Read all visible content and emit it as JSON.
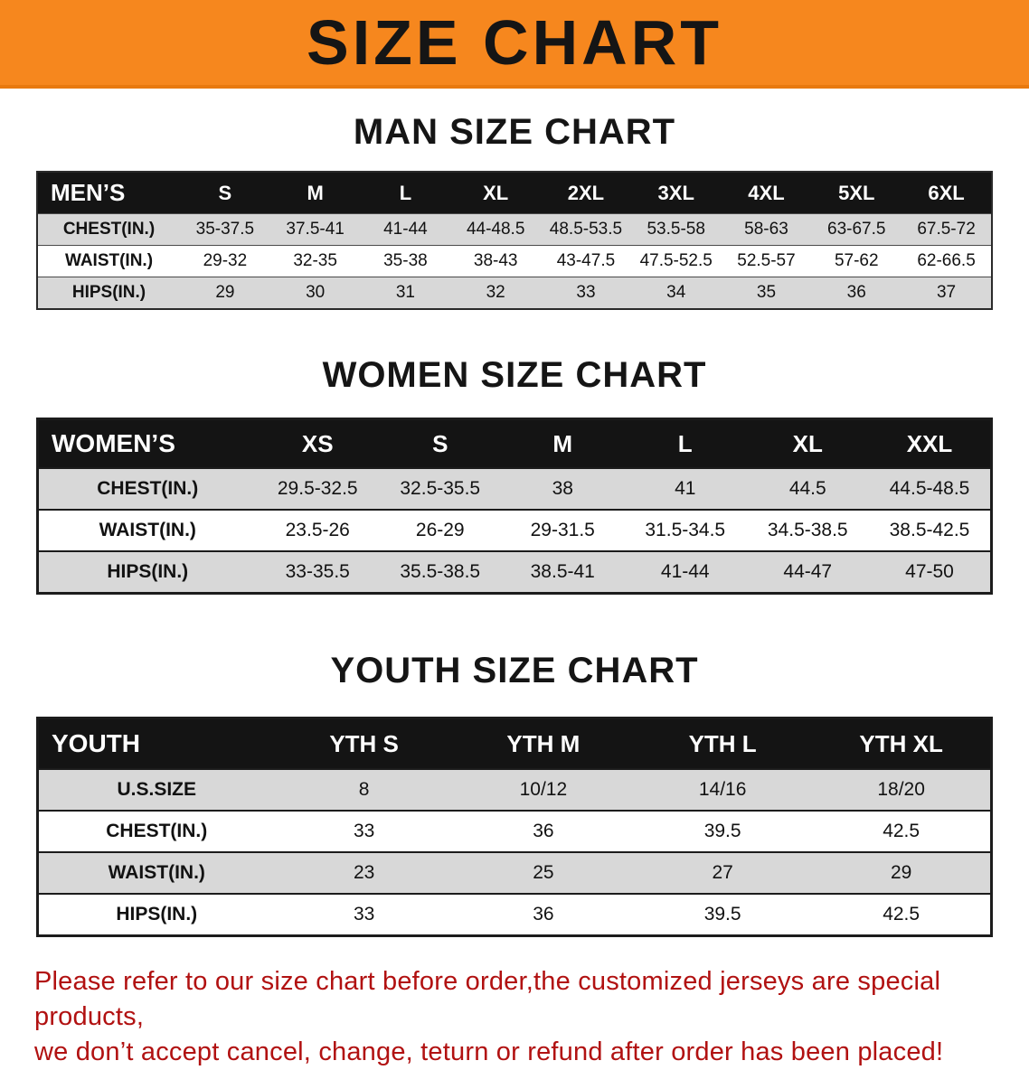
{
  "banner": {
    "title": "SIZE CHART",
    "bg_color": "#f6871e"
  },
  "sections": [
    {
      "heading": "MAN SIZE CHART",
      "table": {
        "header": [
          "MEN’S",
          "S",
          "M",
          "L",
          "XL",
          "2XL",
          "3XL",
          "4XL",
          "5XL",
          "6XL"
        ],
        "rows": [
          {
            "label": "CHEST(IN.)",
            "values": [
              "35-37.5",
              "37.5-41",
              "41-44",
              "44-48.5",
              "48.5-53.5",
              "53.5-58",
              "58-63",
              "63-67.5",
              "67.5-72"
            ]
          },
          {
            "label": "WAIST(IN.)",
            "values": [
              "29-32",
              "32-35",
              "35-38",
              "38-43",
              "43-47.5",
              "47.5-52.5",
              "52.5-57",
              "57-62",
              "62-66.5"
            ]
          },
          {
            "label": "HIPS(IN.)",
            "values": [
              "29",
              "30",
              "31",
              "32",
              "33",
              "34",
              "35",
              "36",
              "37"
            ]
          }
        ]
      }
    },
    {
      "heading": "WOMEN SIZE CHART",
      "table": {
        "header": [
          "WOMEN’S",
          "XS",
          "S",
          "M",
          "L",
          "XL",
          "XXL"
        ],
        "rows": [
          {
            "label": "CHEST(IN.)",
            "values": [
              "29.5-32.5",
              "32.5-35.5",
              "38",
              "41",
              "44.5",
              "44.5-48.5"
            ]
          },
          {
            "label": "WAIST(IN.)",
            "values": [
              "23.5-26",
              "26-29",
              "29-31.5",
              "31.5-34.5",
              "34.5-38.5",
              "38.5-42.5"
            ]
          },
          {
            "label": "HIPS(IN.)",
            "values": [
              "33-35.5",
              "35.5-38.5",
              "38.5-41",
              "41-44",
              "44-47",
              "47-50"
            ]
          }
        ]
      }
    },
    {
      "heading": "YOUTH SIZE CHART",
      "table": {
        "header": [
          "YOUTH",
          "YTH S",
          "YTH M",
          "YTH L",
          "YTH XL"
        ],
        "rows": [
          {
            "label": "U.S.SIZE",
            "values": [
              "8",
              "10/12",
              "14/16",
              "18/20"
            ]
          },
          {
            "label": "CHEST(IN.)",
            "values": [
              "33",
              "36",
              "39.5",
              "42.5"
            ]
          },
          {
            "label": "WAIST(IN.)",
            "values": [
              "23",
              "25",
              "27",
              "29"
            ]
          },
          {
            "label": "HIPS(IN.)",
            "values": [
              "33",
              "36",
              "39.5",
              "42.5"
            ]
          }
        ]
      }
    }
  ],
  "disclaimer": {
    "line1": "Please refer to our size chart before order,the customized jerseys are special products,",
    "line2": "we don’t accept cancel, change, teturn or refund after order has been placed!",
    "text_color": "#b11111"
  }
}
